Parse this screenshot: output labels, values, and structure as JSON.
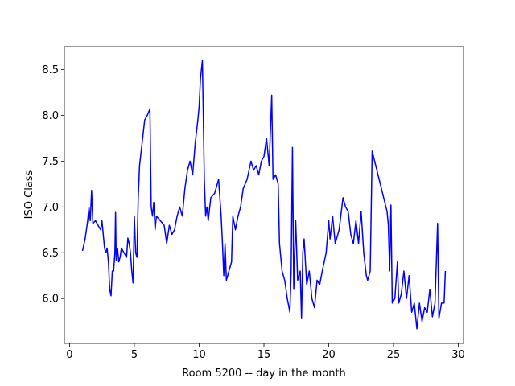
{
  "chart_data": {
    "type": "line",
    "xlabel": "Room 5200 -- day in the month",
    "ylabel": "ISO Class",
    "color": "#0000ff",
    "xlim": [
      -0.4,
      30.4
    ],
    "xticks": [
      0,
      5,
      10,
      15,
      20,
      25,
      30
    ],
    "ylim": [
      5.51,
      8.75
    ],
    "yticks": [
      {
        "value": 6,
        "label": "6.0"
      },
      6.5,
      {
        "value": 7,
        "label": "7.0"
      },
      7.5,
      {
        "value": 8,
        "label": "8.0"
      },
      8.5
    ],
    "grid": false,
    "x": [
      1.0,
      1.2,
      1.4,
      1.5,
      1.6,
      1.7,
      1.8,
      2.0,
      2.2,
      2.4,
      2.5,
      2.6,
      2.7,
      2.8,
      2.9,
      3.0,
      3.1,
      3.2,
      3.3,
      3.4,
      3.5,
      3.55,
      3.6,
      3.7,
      3.8,
      3.9,
      4.0,
      4.2,
      4.4,
      4.5,
      4.6,
      4.7,
      4.8,
      4.9,
      5.0,
      5.1,
      5.2,
      5.3,
      5.4,
      5.6,
      5.8,
      6.0,
      6.2,
      6.3,
      6.4,
      6.5,
      6.6,
      6.7,
      7.0,
      7.3,
      7.5,
      7.7,
      7.9,
      8.1,
      8.3,
      8.5,
      8.7,
      8.9,
      9.1,
      9.3,
      9.5,
      9.7,
      9.9,
      10.0,
      10.1,
      10.25,
      10.4,
      10.5,
      10.6,
      10.7,
      10.9,
      11.2,
      11.5,
      11.7,
      11.8,
      11.9,
      12.0,
      12.1,
      12.3,
      12.5,
      12.6,
      12.8,
      13.0,
      13.2,
      13.4,
      13.7,
      14.0,
      14.2,
      14.4,
      14.6,
      14.8,
      15.0,
      15.2,
      15.4,
      15.6,
      15.7,
      15.9,
      16.1,
      16.2,
      16.4,
      16.6,
      16.8,
      17.0,
      17.1,
      17.2,
      17.3,
      17.45,
      17.6,
      17.8,
      17.9,
      18.0,
      18.1,
      18.3,
      18.5,
      18.7,
      18.9,
      19.1,
      19.3,
      19.5,
      19.8,
      20.0,
      20.1,
      20.3,
      20.5,
      20.8,
      21.1,
      21.3,
      21.5,
      21.7,
      21.9,
      22.1,
      22.3,
      22.5,
      22.7,
      22.9,
      23.0,
      23.2,
      23.35,
      24.5,
      24.6,
      24.7,
      24.8,
      24.9,
      25.1,
      25.3,
      25.4,
      25.6,
      25.8,
      26.0,
      26.2,
      26.4,
      26.6,
      26.8,
      27.0,
      27.2,
      27.4,
      27.6,
      27.8,
      28.0,
      28.2,
      28.4,
      28.5,
      28.7,
      28.9,
      29.0
    ],
    "values": [
      6.52,
      6.65,
      6.85,
      7.0,
      6.85,
      7.18,
      6.82,
      6.85,
      6.8,
      6.75,
      6.85,
      6.7,
      6.55,
      6.5,
      6.55,
      6.4,
      6.1,
      6.03,
      6.3,
      6.3,
      6.5,
      6.94,
      6.42,
      6.55,
      6.4,
      6.45,
      6.55,
      6.5,
      6.45,
      6.66,
      6.6,
      6.5,
      6.3,
      6.17,
      6.9,
      6.5,
      6.45,
      7.1,
      7.45,
      7.7,
      7.95,
      8.0,
      8.07,
      7.0,
      6.9,
      7.05,
      6.75,
      6.9,
      6.85,
      6.8,
      6.6,
      6.8,
      6.7,
      6.75,
      6.9,
      7.0,
      6.9,
      7.2,
      7.4,
      7.5,
      7.35,
      7.7,
      7.95,
      8.1,
      8.4,
      8.6,
      7.3,
      6.9,
      7.0,
      6.85,
      7.1,
      7.15,
      7.3,
      6.9,
      6.6,
      6.25,
      6.6,
      6.2,
      6.3,
      6.4,
      6.9,
      6.75,
      6.9,
      7.0,
      7.2,
      7.3,
      7.5,
      7.4,
      7.45,
      7.35,
      7.5,
      7.55,
      7.75,
      7.45,
      8.22,
      7.3,
      7.35,
      7.25,
      6.6,
      6.3,
      6.2,
      6.0,
      5.85,
      6.3,
      7.65,
      6.1,
      6.85,
      6.2,
      6.3,
      5.78,
      6.5,
      6.65,
      6.15,
      6.3,
      6.0,
      5.9,
      6.2,
      6.15,
      6.3,
      6.5,
      6.85,
      6.65,
      6.9,
      6.6,
      6.75,
      7.1,
      7.0,
      6.95,
      6.7,
      6.6,
      6.85,
      6.6,
      6.95,
      6.5,
      6.25,
      6.2,
      6.3,
      7.61,
      6.95,
      6.8,
      6.3,
      7.02,
      5.95,
      6.0,
      6.4,
      5.95,
      6.05,
      6.3,
      6.0,
      6.25,
      5.85,
      5.95,
      5.67,
      5.95,
      5.75,
      5.9,
      5.85,
      6.1,
      5.8,
      5.95,
      6.82,
      5.78,
      5.95,
      5.95,
      6.3
    ]
  }
}
